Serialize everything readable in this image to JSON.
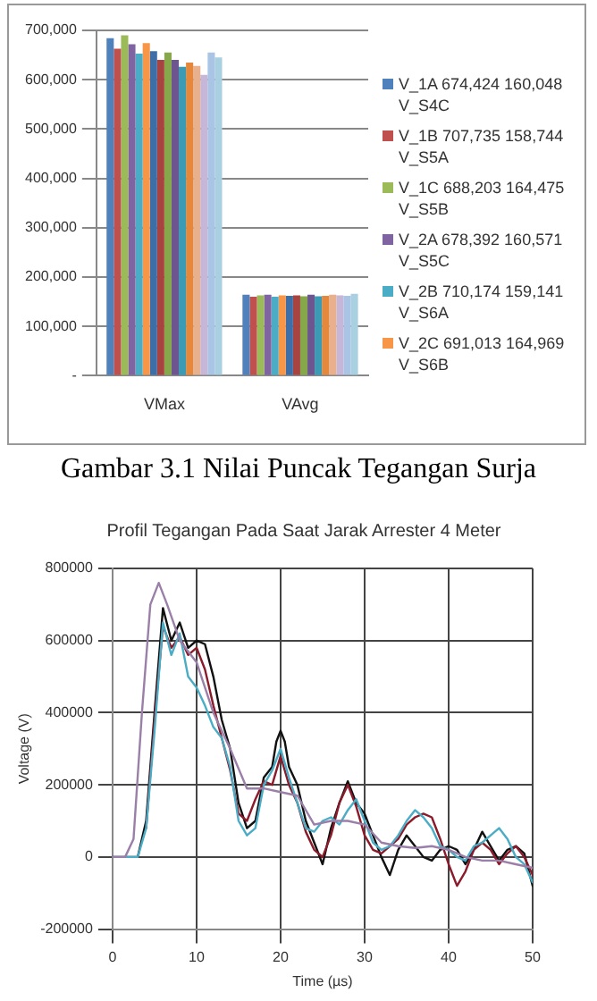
{
  "chart_data": [
    {
      "type": "bar",
      "categories": [
        "VMax",
        "VAvg"
      ],
      "series": [
        {
          "name": "V_1A 674,424 160,048 V_S4C",
          "color": "#4f81bd",
          "values": [
            684000,
            164000
          ]
        },
        {
          "name": "V_1B 707,735 158,744 V_S5A",
          "color": "#c0504d",
          "values": [
            663000,
            160000
          ]
        },
        {
          "name": "V_1C 688,203 164,475 V_S5B",
          "color": "#9bbb59",
          "values": [
            690000,
            163000
          ]
        },
        {
          "name": "V_2A 678,392 160,571 V_S5C",
          "color": "#8064a2",
          "values": [
            672000,
            164000
          ]
        },
        {
          "name": "V_2B 710,174 159,141 V_S6A",
          "color": "#4bacc6",
          "values": [
            653000,
            160000
          ]
        },
        {
          "name": "V_2C 691,013 164,969 V_S6B",
          "color": "#f79646",
          "values": [
            674000,
            163000
          ]
        },
        {
          "color": "#3e6ea8",
          "values": [
            658000,
            162000
          ]
        },
        {
          "color": "#a84440",
          "values": [
            640000,
            163000
          ]
        },
        {
          "color": "#86a84a",
          "values": [
            655000,
            161000
          ]
        },
        {
          "color": "#6d5590",
          "values": [
            640000,
            164000
          ]
        },
        {
          "color": "#3b9ab4",
          "values": [
            626000,
            161000
          ]
        },
        {
          "color": "#e6883c",
          "values": [
            635000,
            162000
          ]
        },
        {
          "color": "#e8b08c",
          "values": [
            628000,
            164000
          ]
        },
        {
          "color": "#c6b6d8",
          "values": [
            610000,
            163000
          ]
        },
        {
          "color": "#a9c4e4",
          "values": [
            655000,
            162000
          ]
        },
        {
          "color": "#a8d0e0",
          "values": [
            645000,
            166000
          ]
        }
      ],
      "ylim": [
        0,
        700000
      ],
      "yticks": [
        {
          "value": 0,
          "label": "-"
        },
        {
          "value": 100000,
          "label": "100,000"
        },
        {
          "value": 200000,
          "label": "200,000"
        },
        {
          "value": 300000,
          "label": "300,000"
        },
        {
          "value": 400000,
          "label": "400,000"
        },
        {
          "value": 500000,
          "label": "500,000"
        },
        {
          "value": 600000,
          "label": "600,000"
        },
        {
          "value": 700000,
          "label": "700,000"
        }
      ],
      "grid": "y",
      "legend": "right",
      "annotations": [
        "Gambar 3.1 Nilai Puncak Tegangan Surja"
      ]
    },
    {
      "type": "line",
      "title": "Profil Tegangan Pada Saat Jarak Arrester 4 Meter",
      "xlabel": "Time (µs)",
      "ylabel": "Voltage (V)",
      "series": [
        {
          "color": "#9a7fa8",
          "x": [
            0,
            1.5,
            2.5,
            3.5,
            4.5,
            5.5,
            6.5,
            8,
            10,
            12,
            14,
            16,
            18,
            20,
            22,
            24,
            26,
            28,
            30,
            32,
            34,
            36,
            38,
            40,
            42,
            44,
            46,
            48,
            50
          ],
          "values": [
            0,
            0,
            50000,
            400000,
            700000,
            760000,
            700000,
            600000,
            540000,
            400000,
            300000,
            190000,
            190000,
            180000,
            170000,
            90000,
            100000,
            100000,
            90000,
            40000,
            30000,
            25000,
            30000,
            20000,
            0,
            -10000,
            -10000,
            -20000,
            -30000
          ]
        },
        {
          "color": "#4bacc6",
          "x": [
            0,
            3,
            4,
            5,
            6,
            7,
            8,
            9,
            10,
            11,
            12,
            13,
            14,
            15,
            16,
            17,
            18,
            19,
            20,
            21,
            22,
            23,
            24,
            25,
            26,
            27,
            28,
            29,
            30,
            31,
            32,
            33,
            34,
            35,
            36,
            37,
            38,
            39,
            40,
            41,
            42,
            43,
            44,
            45,
            46,
            47,
            48,
            49,
            50
          ],
          "values": [
            0,
            0,
            80000,
            350000,
            650000,
            560000,
            620000,
            500000,
            470000,
            420000,
            360000,
            330000,
            250000,
            100000,
            60000,
            80000,
            200000,
            240000,
            300000,
            220000,
            150000,
            80000,
            70000,
            100000,
            110000,
            90000,
            130000,
            160000,
            100000,
            40000,
            20000,
            30000,
            60000,
            100000,
            130000,
            110000,
            80000,
            30000,
            20000,
            0,
            -10000,
            30000,
            40000,
            60000,
            80000,
            50000,
            0,
            -20000,
            -70000
          ]
        },
        {
          "color": "#8b1a2a",
          "x": [
            4,
            5,
            6,
            7,
            8,
            9,
            10,
            11,
            12,
            13,
            14,
            15,
            16,
            17,
            18,
            19,
            20,
            21,
            22,
            23,
            24,
            25,
            26,
            27,
            28,
            29,
            30,
            31,
            32,
            33,
            34,
            35,
            36,
            37,
            38,
            39,
            40,
            41,
            42,
            43,
            44,
            45,
            46,
            47,
            48,
            49,
            50
          ],
          "values": [
            80000,
            380000,
            640000,
            580000,
            610000,
            560000,
            580000,
            520000,
            420000,
            330000,
            240000,
            120000,
            100000,
            160000,
            210000,
            200000,
            280000,
            200000,
            150000,
            70000,
            20000,
            0,
            60000,
            150000,
            200000,
            140000,
            60000,
            20000,
            10000,
            30000,
            50000,
            90000,
            110000,
            120000,
            110000,
            50000,
            -20000,
            -80000,
            -40000,
            20000,
            40000,
            20000,
            -20000,
            10000,
            30000,
            0,
            -50000
          ]
        },
        {
          "color": "#111111",
          "x": [
            0,
            3,
            4,
            5,
            6,
            7,
            8,
            9,
            10,
            11,
            12,
            13,
            14,
            15,
            16,
            17,
            18,
            19,
            19.5,
            20,
            20.5,
            21,
            22,
            23,
            24,
            25,
            26,
            27,
            28,
            29,
            30,
            31,
            32,
            33,
            34,
            35,
            36,
            37,
            38,
            39,
            40,
            41,
            42,
            43,
            44,
            45,
            46,
            47,
            48,
            49,
            50
          ],
          "values": [
            0,
            0,
            100000,
            400000,
            690000,
            600000,
            650000,
            580000,
            600000,
            590000,
            500000,
            380000,
            300000,
            150000,
            80000,
            100000,
            220000,
            250000,
            320000,
            350000,
            320000,
            250000,
            200000,
            100000,
            40000,
            -20000,
            80000,
            150000,
            210000,
            150000,
            120000,
            60000,
            0,
            -50000,
            20000,
            60000,
            30000,
            0,
            -10000,
            20000,
            30000,
            20000,
            -20000,
            20000,
            70000,
            30000,
            -10000,
            20000,
            30000,
            10000,
            -80000
          ]
        }
      ],
      "xlim": [
        0,
        50
      ],
      "xticks": [
        0,
        10,
        20,
        30,
        40,
        50
      ],
      "ylim": [
        -200000,
        800000
      ],
      "yticks": [
        -200000,
        0,
        200000,
        400000,
        600000,
        800000
      ],
      "grid": true,
      "marker": "none",
      "line_style": "solid"
    }
  ]
}
